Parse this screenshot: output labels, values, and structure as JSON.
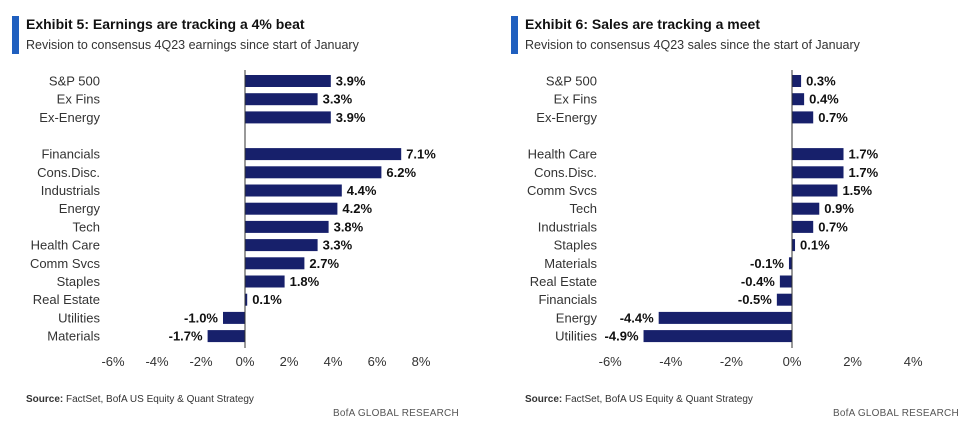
{
  "colors": {
    "bar": "#17206b",
    "accent": "#1f5fbf",
    "axis": "#333333"
  },
  "left": {
    "title": "Exhibit 5: Earnings are tracking a 4% beat",
    "subtitle": "Revision to consensus 4Q23 earnings since start of January",
    "source_label": "Source:",
    "source_text": " FactSet, BofA US Equity & Quant Strategy",
    "footer": "BofA GLOBAL RESEARCH"
  },
  "right": {
    "title": "Exhibit 6: Sales are tracking a meet",
    "subtitle": "Revision to consensus 4Q23 sales since the start of January",
    "source_label": "Source:",
    "source_text": " FactSet, BofA US Equity & Quant Strategy",
    "footer": "BofA GLOBAL RESEARCH"
  },
  "chart_data": [
    {
      "type": "bar",
      "orientation": "horizontal",
      "title": "Exhibit 5: Earnings are tracking a 4% beat",
      "subtitle": "Revision to consensus 4Q23 earnings since start of January",
      "groups": [
        {
          "categories": [
            "S&P 500",
            "Ex Fins",
            "Ex-Energy"
          ],
          "values": [
            3.9,
            3.3,
            3.9
          ]
        },
        {
          "categories": [
            "Financials",
            "Cons.Disc.",
            "Industrials",
            "Energy",
            "Tech",
            "Health Care",
            "Comm Svcs",
            "Staples",
            "Real Estate",
            "Utilities",
            "Materials"
          ],
          "values": [
            7.1,
            6.2,
            4.4,
            4.2,
            3.8,
            3.3,
            2.7,
            1.8,
            0.1,
            -1.0,
            -1.7
          ]
        }
      ],
      "value_labels": [
        "3.9%",
        "3.3%",
        "3.9%",
        "7.1%",
        "6.2%",
        "4.4%",
        "4.2%",
        "3.8%",
        "3.3%",
        "2.7%",
        "1.8%",
        "0.1%",
        "-1.0%",
        "-1.7%"
      ],
      "xlim": [
        -6,
        8
      ],
      "xticks": [
        "-6%",
        "-4%",
        "-2%",
        "0%",
        "2%",
        "4%",
        "6%",
        "8%"
      ],
      "grid": false,
      "legend": "none"
    },
    {
      "type": "bar",
      "orientation": "horizontal",
      "title": "Exhibit 6: Sales are tracking a meet",
      "subtitle": "Revision to consensus 4Q23 sales since the start of January",
      "groups": [
        {
          "categories": [
            "S&P 500",
            "Ex Fins",
            "Ex-Energy"
          ],
          "values": [
            0.3,
            0.4,
            0.7
          ]
        },
        {
          "categories": [
            "Health Care",
            "Cons.Disc.",
            "Comm Svcs",
            "Tech",
            "Industrials",
            "Staples",
            "Materials",
            "Real Estate",
            "Financials",
            "Energy",
            "Utilities"
          ],
          "values": [
            1.7,
            1.7,
            1.5,
            0.9,
            0.7,
            0.1,
            -0.1,
            -0.4,
            -0.5,
            -4.4,
            -4.9
          ]
        }
      ],
      "value_labels": [
        "0.3%",
        "0.4%",
        "0.7%",
        "1.7%",
        "1.7%",
        "1.5%",
        "0.9%",
        "0.7%",
        "0.1%",
        "-0.1%",
        "-0.4%",
        "-0.5%",
        "-4.4%",
        "-4.9%"
      ],
      "xlim": [
        -6,
        4
      ],
      "xticks": [
        "-6%",
        "-4%",
        "-2%",
        "0%",
        "2%",
        "4%"
      ],
      "grid": false,
      "legend": "none"
    }
  ]
}
